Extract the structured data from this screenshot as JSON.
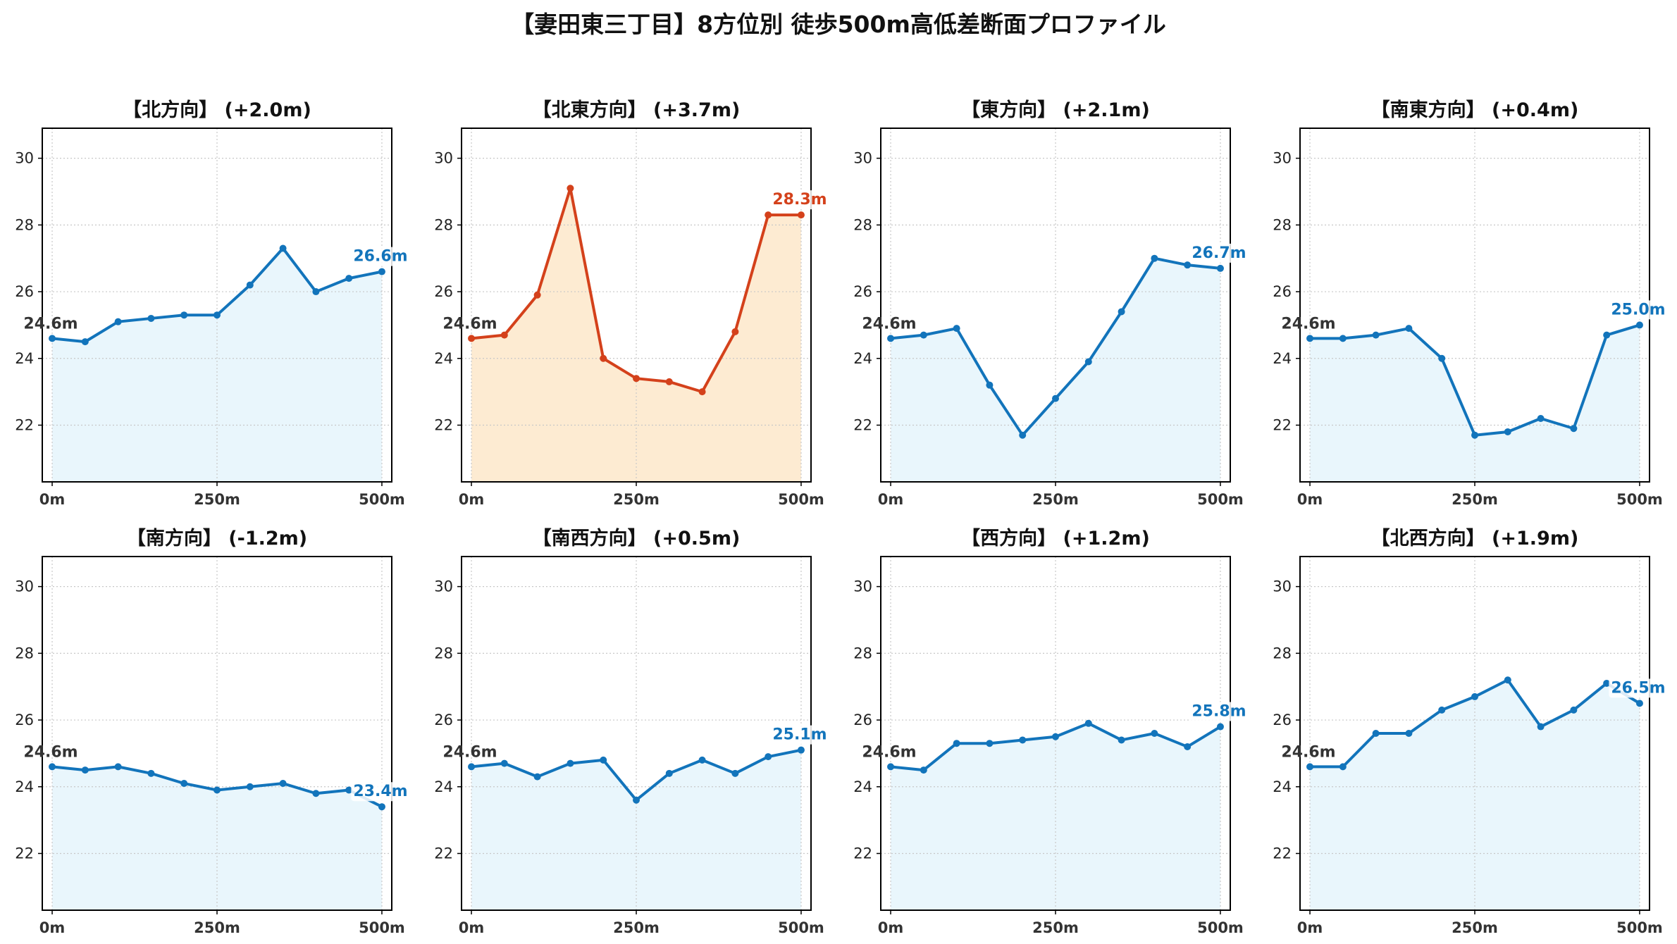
{
  "figure": {
    "title": "【妻田東三丁目】8方位別 徒歩500m高低差断面プロファイル"
  },
  "colors": {
    "normal_line": "#1274bb",
    "normal_fill": "#e9f6fc",
    "highlight_line": "#d4411b",
    "highlight_fill": "#fdebd2",
    "start_label": "#333333",
    "grid": "#c8c8c8"
  },
  "chart_data": [
    {
      "type": "line",
      "title": "【北方向】 (+2.0m)",
      "highlight": false,
      "x": [
        0,
        50,
        100,
        150,
        200,
        250,
        300,
        350,
        400,
        450,
        500
      ],
      "y": [
        24.6,
        24.5,
        25.1,
        25.2,
        25.3,
        25.3,
        26.2,
        27.3,
        26.0,
        26.4,
        26.6
      ],
      "start_label": "24.6m",
      "end_label": "26.6m",
      "x_ticks": [
        "0m",
        "250m",
        "500m"
      ],
      "y_ticks": [
        22,
        24,
        26,
        28,
        30
      ],
      "xlim": [
        -15,
        515
      ],
      "ylim": [
        20.3,
        30.9
      ],
      "grid": true
    },
    {
      "type": "line",
      "title": "【北東方向】 (+3.7m)",
      "highlight": true,
      "x": [
        0,
        50,
        100,
        150,
        200,
        250,
        300,
        350,
        400,
        450,
        500
      ],
      "y": [
        24.6,
        24.7,
        25.9,
        29.1,
        24.0,
        23.4,
        23.3,
        23.0,
        24.8,
        28.3,
        28.3
      ],
      "start_label": "24.6m",
      "end_label": "28.3m",
      "x_ticks": [
        "0m",
        "250m",
        "500m"
      ],
      "y_ticks": [
        22,
        24,
        26,
        28,
        30
      ],
      "xlim": [
        -15,
        515
      ],
      "ylim": [
        20.3,
        30.9
      ],
      "grid": true
    },
    {
      "type": "line",
      "title": "【東方向】 (+2.1m)",
      "highlight": false,
      "x": [
        0,
        50,
        100,
        150,
        200,
        250,
        300,
        350,
        400,
        450,
        500
      ],
      "y": [
        24.6,
        24.7,
        24.9,
        23.2,
        21.7,
        22.8,
        23.9,
        25.4,
        27.0,
        26.8,
        26.7
      ],
      "start_label": "24.6m",
      "end_label": "26.7m",
      "x_ticks": [
        "0m",
        "250m",
        "500m"
      ],
      "y_ticks": [
        22,
        24,
        26,
        28,
        30
      ],
      "xlim": [
        -15,
        515
      ],
      "ylim": [
        20.3,
        30.9
      ],
      "grid": true
    },
    {
      "type": "line",
      "title": "【南東方向】 (+0.4m)",
      "highlight": false,
      "x": [
        0,
        50,
        100,
        150,
        200,
        250,
        300,
        350,
        400,
        450,
        500
      ],
      "y": [
        24.6,
        24.6,
        24.7,
        24.9,
        24.0,
        21.7,
        21.8,
        22.2,
        21.9,
        24.7,
        25.0
      ],
      "start_label": "24.6m",
      "end_label": "25.0m",
      "x_ticks": [
        "0m",
        "250m",
        "500m"
      ],
      "y_ticks": [
        22,
        24,
        26,
        28,
        30
      ],
      "xlim": [
        -15,
        515
      ],
      "ylim": [
        20.3,
        30.9
      ],
      "grid": true
    },
    {
      "type": "line",
      "title": "【南方向】 (-1.2m)",
      "highlight": false,
      "x": [
        0,
        50,
        100,
        150,
        200,
        250,
        300,
        350,
        400,
        450,
        500
      ],
      "y": [
        24.6,
        24.5,
        24.6,
        24.4,
        24.1,
        23.9,
        24.0,
        24.1,
        23.8,
        23.9,
        23.4
      ],
      "start_label": "24.6m",
      "end_label": "23.4m",
      "x_ticks": [
        "0m",
        "250m",
        "500m"
      ],
      "y_ticks": [
        22,
        24,
        26,
        28,
        30
      ],
      "xlim": [
        -15,
        515
      ],
      "ylim": [
        20.3,
        30.9
      ],
      "grid": true
    },
    {
      "type": "line",
      "title": "【南西方向】 (+0.5m)",
      "highlight": false,
      "x": [
        0,
        50,
        100,
        150,
        200,
        250,
        300,
        350,
        400,
        450,
        500
      ],
      "y": [
        24.6,
        24.7,
        24.3,
        24.7,
        24.8,
        23.6,
        24.4,
        24.8,
        24.4,
        24.9,
        25.1
      ],
      "start_label": "24.6m",
      "end_label": "25.1m",
      "x_ticks": [
        "0m",
        "250m",
        "500m"
      ],
      "y_ticks": [
        22,
        24,
        26,
        28,
        30
      ],
      "xlim": [
        -15,
        515
      ],
      "ylim": [
        20.3,
        30.9
      ],
      "grid": true
    },
    {
      "type": "line",
      "title": "【西方向】 (+1.2m)",
      "highlight": false,
      "x": [
        0,
        50,
        100,
        150,
        200,
        250,
        300,
        350,
        400,
        450,
        500
      ],
      "y": [
        24.6,
        24.5,
        25.3,
        25.3,
        25.4,
        25.5,
        25.9,
        25.4,
        25.6,
        25.2,
        25.8
      ],
      "start_label": "24.6m",
      "end_label": "25.8m",
      "x_ticks": [
        "0m",
        "250m",
        "500m"
      ],
      "y_ticks": [
        22,
        24,
        26,
        28,
        30
      ],
      "xlim": [
        -15,
        515
      ],
      "ylim": [
        20.3,
        30.9
      ],
      "grid": true
    },
    {
      "type": "line",
      "title": "【北西方向】 (+1.9m)",
      "highlight": false,
      "x": [
        0,
        50,
        100,
        150,
        200,
        250,
        300,
        350,
        400,
        450,
        500
      ],
      "y": [
        24.6,
        24.6,
        25.6,
        25.6,
        26.3,
        26.7,
        27.2,
        25.8,
        26.3,
        27.1,
        26.5
      ],
      "start_label": "24.6m",
      "end_label": "26.5m",
      "x_ticks": [
        "0m",
        "250m",
        "500m"
      ],
      "y_ticks": [
        22,
        24,
        26,
        28,
        30
      ],
      "xlim": [
        -15,
        515
      ],
      "ylim": [
        20.3,
        30.9
      ],
      "grid": true
    }
  ]
}
